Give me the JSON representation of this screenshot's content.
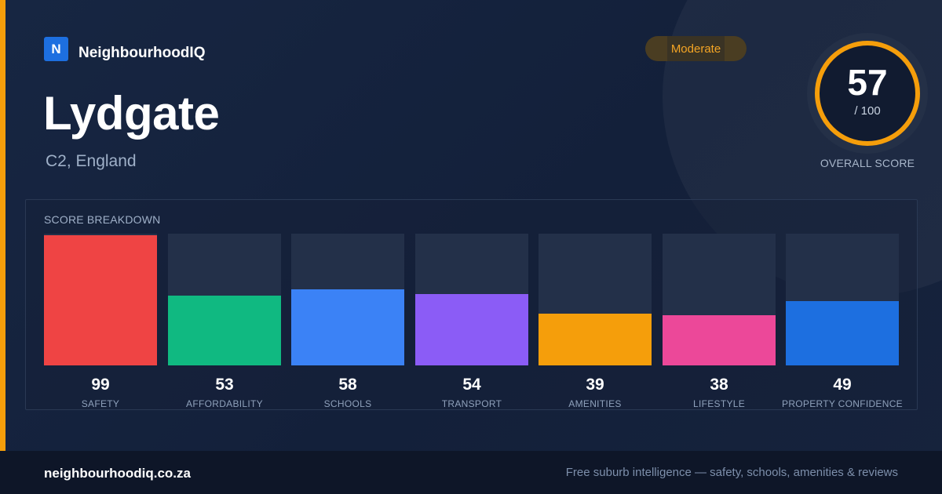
{
  "brand": {
    "logo_letter": "N",
    "name": "NeighbourhoodIQ"
  },
  "suburb": {
    "name": "Lydgate",
    "location": "C2, England"
  },
  "rating_badge": {
    "label": "Moderate"
  },
  "overall_score": {
    "value": 57,
    "max_label": "/ 100",
    "label": "OVERALL SCORE",
    "max": 100
  },
  "breakdown": {
    "title": "SCORE BREAKDOWN",
    "items": [
      {
        "label": "SAFETY",
        "value": 99,
        "color": "#ef4444"
      },
      {
        "label": "AFFORDABILITY",
        "value": 53,
        "color": "#10b981"
      },
      {
        "label": "SCHOOLS",
        "value": 58,
        "color": "#3b82f6"
      },
      {
        "label": "TRANSPORT",
        "value": 54,
        "color": "#8b5cf6"
      },
      {
        "label": "AMENITIES",
        "value": 39,
        "color": "#f59e0b"
      },
      {
        "label": "LIFESTYLE",
        "value": 38,
        "color": "#ec4899"
      },
      {
        "label": "PROPERTY CONFIDENCE",
        "value": 49,
        "color": "#1d6fe0"
      }
    ]
  },
  "footer": {
    "site": "neighbourhoodiq.co.za",
    "tagline": "Free suburb intelligence — safety, schools, amenities & reviews"
  },
  "colors": {
    "accent": "#f59e0b",
    "brand_blue": "#1d6fe0",
    "background": "#14213a"
  }
}
